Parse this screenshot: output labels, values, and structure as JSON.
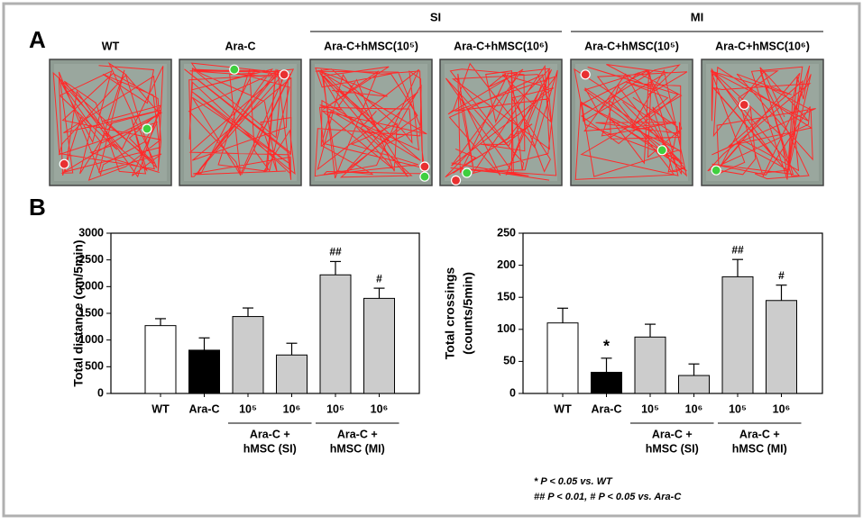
{
  "panel_a": {
    "letter": "A",
    "group_headers": [
      "SI",
      "MI"
    ],
    "track_labels": [
      "WT",
      "Ara-C",
      "Ara-C+hMSC(10⁵)",
      "Ara-C+hMSC(10⁶)",
      "Ara-C+hMSC(10⁵)",
      "Ara-C+hMSC(10⁶)"
    ]
  },
  "panel_b": {
    "letter": "B"
  },
  "chart_data": [
    {
      "type": "bar",
      "ylabel_lines": [
        "Total distance (cm/5min)"
      ],
      "categories": [
        "WT",
        "Ara-C",
        "10⁵",
        "10⁶",
        "10⁵",
        "10⁶"
      ],
      "values": [
        1270,
        810,
        1440,
        720,
        2220,
        1780
      ],
      "errors": [
        130,
        230,
        160,
        220,
        250,
        190
      ],
      "colors": [
        "#ffffff",
        "#000000",
        "#cccccc",
        "#cccccc",
        "#cccccc",
        "#cccccc"
      ],
      "value_annotations": [
        null,
        null,
        null,
        null,
        "##",
        "#"
      ],
      "group_labels": [
        [
          "Ara-C +",
          "hMSC (SI)"
        ],
        [
          "Ara-C +",
          "hMSC (MI)"
        ]
      ],
      "ylim": [
        0,
        3000
      ],
      "yticks": [
        0,
        500,
        1000,
        1500,
        2000,
        2500,
        3000
      ]
    },
    {
      "type": "bar",
      "ylabel_lines": [
        "Total crossings",
        "(counts/5min)"
      ],
      "categories": [
        "WT",
        "Ara-C",
        "10⁵",
        "10⁶",
        "10⁵",
        "10⁶"
      ],
      "values": [
        110,
        33,
        88,
        28,
        182,
        145
      ],
      "errors": [
        23,
        22,
        20,
        18,
        27,
        24
      ],
      "colors": [
        "#ffffff",
        "#000000",
        "#cccccc",
        "#cccccc",
        "#cccccc",
        "#cccccc"
      ],
      "value_annotations": [
        null,
        "*",
        null,
        null,
        "##",
        "#"
      ],
      "group_labels": [
        [
          "Ara-C +",
          "hMSC (SI)"
        ],
        [
          "Ara-C +",
          "hMSC (MI)"
        ]
      ],
      "ylim": [
        0,
        250
      ],
      "yticks": [
        0,
        50,
        100,
        150,
        200,
        250
      ]
    }
  ],
  "footnotes": [
    "* P < 0.05 vs. WT",
    "## P < 0.01, # P < 0.05 vs. Ara-C"
  ]
}
